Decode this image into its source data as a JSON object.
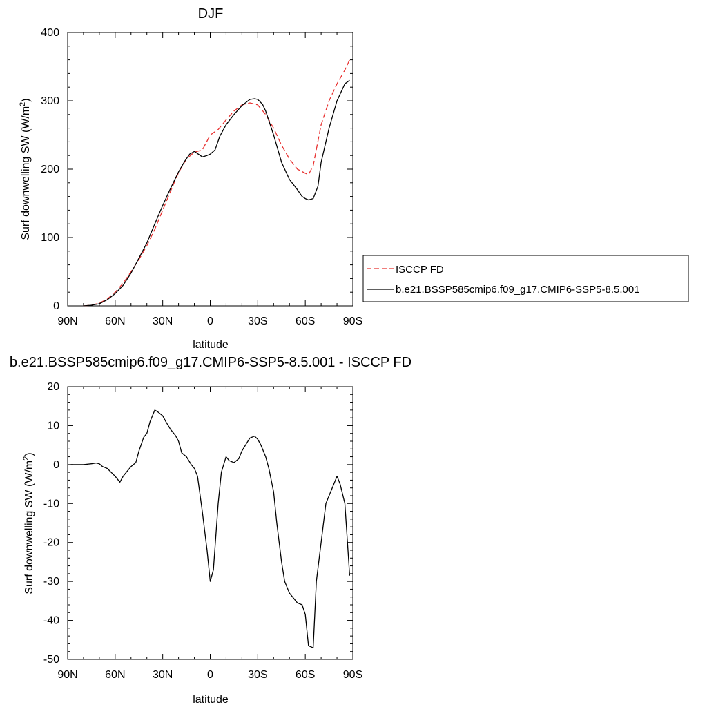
{
  "chart_data": [
    {
      "type": "line",
      "title": "DJF",
      "xlabel": "latitude",
      "ylabel_text": "Surf downwelling SW (W/m",
      "ylabel_sup": "2",
      "ylabel_close": ")",
      "xlim": [
        90,
        -90
      ],
      "ylim": [
        0,
        400
      ],
      "x_ticks": [
        {
          "value": 90,
          "label": "90N"
        },
        {
          "value": 60,
          "label": "60N"
        },
        {
          "value": 30,
          "label": "30N"
        },
        {
          "value": 0,
          "label": "0"
        },
        {
          "value": -30,
          "label": "30S"
        },
        {
          "value": -60,
          "label": "60S"
        },
        {
          "value": -90,
          "label": "90S"
        }
      ],
      "y_ticks": [
        {
          "value": 0,
          "label": "0"
        },
        {
          "value": 100,
          "label": "100"
        },
        {
          "value": 200,
          "label": "200"
        },
        {
          "value": 300,
          "label": "300"
        },
        {
          "value": 400,
          "label": "400"
        }
      ],
      "legend_position": "right",
      "series": [
        {
          "name": "ISCCP FD",
          "color": "#e8302f",
          "dashed": true,
          "x": [
            80,
            75,
            70,
            65,
            60,
            55,
            50,
            45,
            40,
            35,
            30,
            25,
            20,
            15,
            10,
            5,
            0,
            -5,
            -10,
            -15,
            -20,
            -25,
            -30,
            -35,
            -40,
            -45,
            -50,
            -55,
            -60,
            -62,
            -65,
            -70,
            -75,
            -80,
            -85,
            -88
          ],
          "y": [
            0,
            1,
            4,
            10,
            20,
            33,
            50,
            68,
            88,
            112,
            140,
            168,
            195,
            215,
            225,
            228,
            250,
            258,
            272,
            285,
            294,
            297,
            294,
            280,
            260,
            235,
            215,
            200,
            194,
            192,
            205,
            265,
            300,
            325,
            345,
            360
          ]
        },
        {
          "name": "b.e21.BSSP585cmip6.f09_g17.CMIP6-SSP5-8.5.001",
          "color": "#000000",
          "dashed": false,
          "x": [
            80,
            75,
            70,
            65,
            60,
            55,
            50,
            45,
            40,
            35,
            30,
            25,
            20,
            16,
            13,
            10,
            5,
            2,
            0,
            -3,
            -6,
            -10,
            -15,
            -20,
            -25,
            -28,
            -30,
            -33,
            -35,
            -40,
            -45,
            -50,
            -55,
            -58,
            -60,
            -62,
            -65,
            -68,
            -70,
            -75,
            -80,
            -85,
            -88
          ],
          "y": [
            0,
            1,
            3,
            9,
            18,
            30,
            48,
            70,
            92,
            120,
            147,
            172,
            196,
            212,
            222,
            226,
            218,
            220,
            222,
            228,
            248,
            265,
            280,
            293,
            302,
            303,
            302,
            295,
            285,
            250,
            210,
            185,
            170,
            160,
            157,
            155,
            157,
            175,
            210,
            260,
            300,
            325,
            330
          ]
        }
      ]
    },
    {
      "type": "line",
      "title": "b.e21.BSSP585cmip6.f09_g17.CMIP6-SSP5-8.5.001 - ISCCP FD",
      "xlabel": "latitude",
      "ylabel_text": "Surf downwelling SW (W/m",
      "ylabel_sup": "2",
      "ylabel_close": ")",
      "xlim": [
        90,
        -90
      ],
      "ylim": [
        -50,
        20
      ],
      "x_ticks": [
        {
          "value": 90,
          "label": "90N"
        },
        {
          "value": 60,
          "label": "60N"
        },
        {
          "value": 30,
          "label": "30N"
        },
        {
          "value": 0,
          "label": "0"
        },
        {
          "value": -30,
          "label": "30S"
        },
        {
          "value": -60,
          "label": "60S"
        },
        {
          "value": -90,
          "label": "90S"
        }
      ],
      "y_ticks": [
        {
          "value": -50,
          "label": "-50"
        },
        {
          "value": -40,
          "label": "-40"
        },
        {
          "value": -30,
          "label": "-30"
        },
        {
          "value": -20,
          "label": "-20"
        },
        {
          "value": -10,
          "label": "-10"
        },
        {
          "value": 0,
          "label": "0"
        },
        {
          "value": 10,
          "label": "10"
        },
        {
          "value": 20,
          "label": "20"
        }
      ],
      "series": [
        {
          "name": "",
          "color": "#000000",
          "dashed": false,
          "x": [
            88,
            85,
            80,
            75,
            72,
            70,
            68,
            65,
            60,
            57,
            55,
            52,
            50,
            47,
            45,
            42,
            40,
            38,
            35,
            33,
            30,
            28,
            25,
            22,
            20,
            18,
            15,
            12,
            10,
            8,
            5,
            2,
            0,
            -2,
            -5,
            -7,
            -10,
            -12,
            -15,
            -18,
            -20,
            -23,
            -25,
            -28,
            -30,
            -32,
            -35,
            -37,
            -40,
            -42,
            -45,
            -47,
            -50,
            -52,
            -55,
            -58,
            -60,
            -62,
            -65,
            -67,
            -70,
            -73,
            -75,
            -78,
            -80,
            -82,
            -85,
            -88
          ],
          "y": [
            0,
            0,
            0,
            0.2,
            0.4,
            0.2,
            -0.5,
            -1,
            -3,
            -4.5,
            -3,
            -1.5,
            -0.5,
            0.5,
            3.5,
            7,
            8,
            11,
            14,
            13.5,
            12.5,
            11,
            9,
            7.5,
            6,
            3,
            2,
            0,
            -1,
            -3,
            -12,
            -22,
            -30,
            -27,
            -10,
            -2,
            2,
            1,
            0.5,
            1.5,
            3.5,
            5.5,
            6.8,
            7.3,
            6.5,
            5,
            2,
            -1,
            -7,
            -15,
            -25,
            -30,
            -33,
            -34,
            -35.5,
            -36,
            -38.5,
            -46.5,
            -47,
            -30,
            -20,
            -10,
            -8,
            -5,
            -3,
            -5,
            -10,
            -28.5
          ]
        }
      ]
    }
  ]
}
